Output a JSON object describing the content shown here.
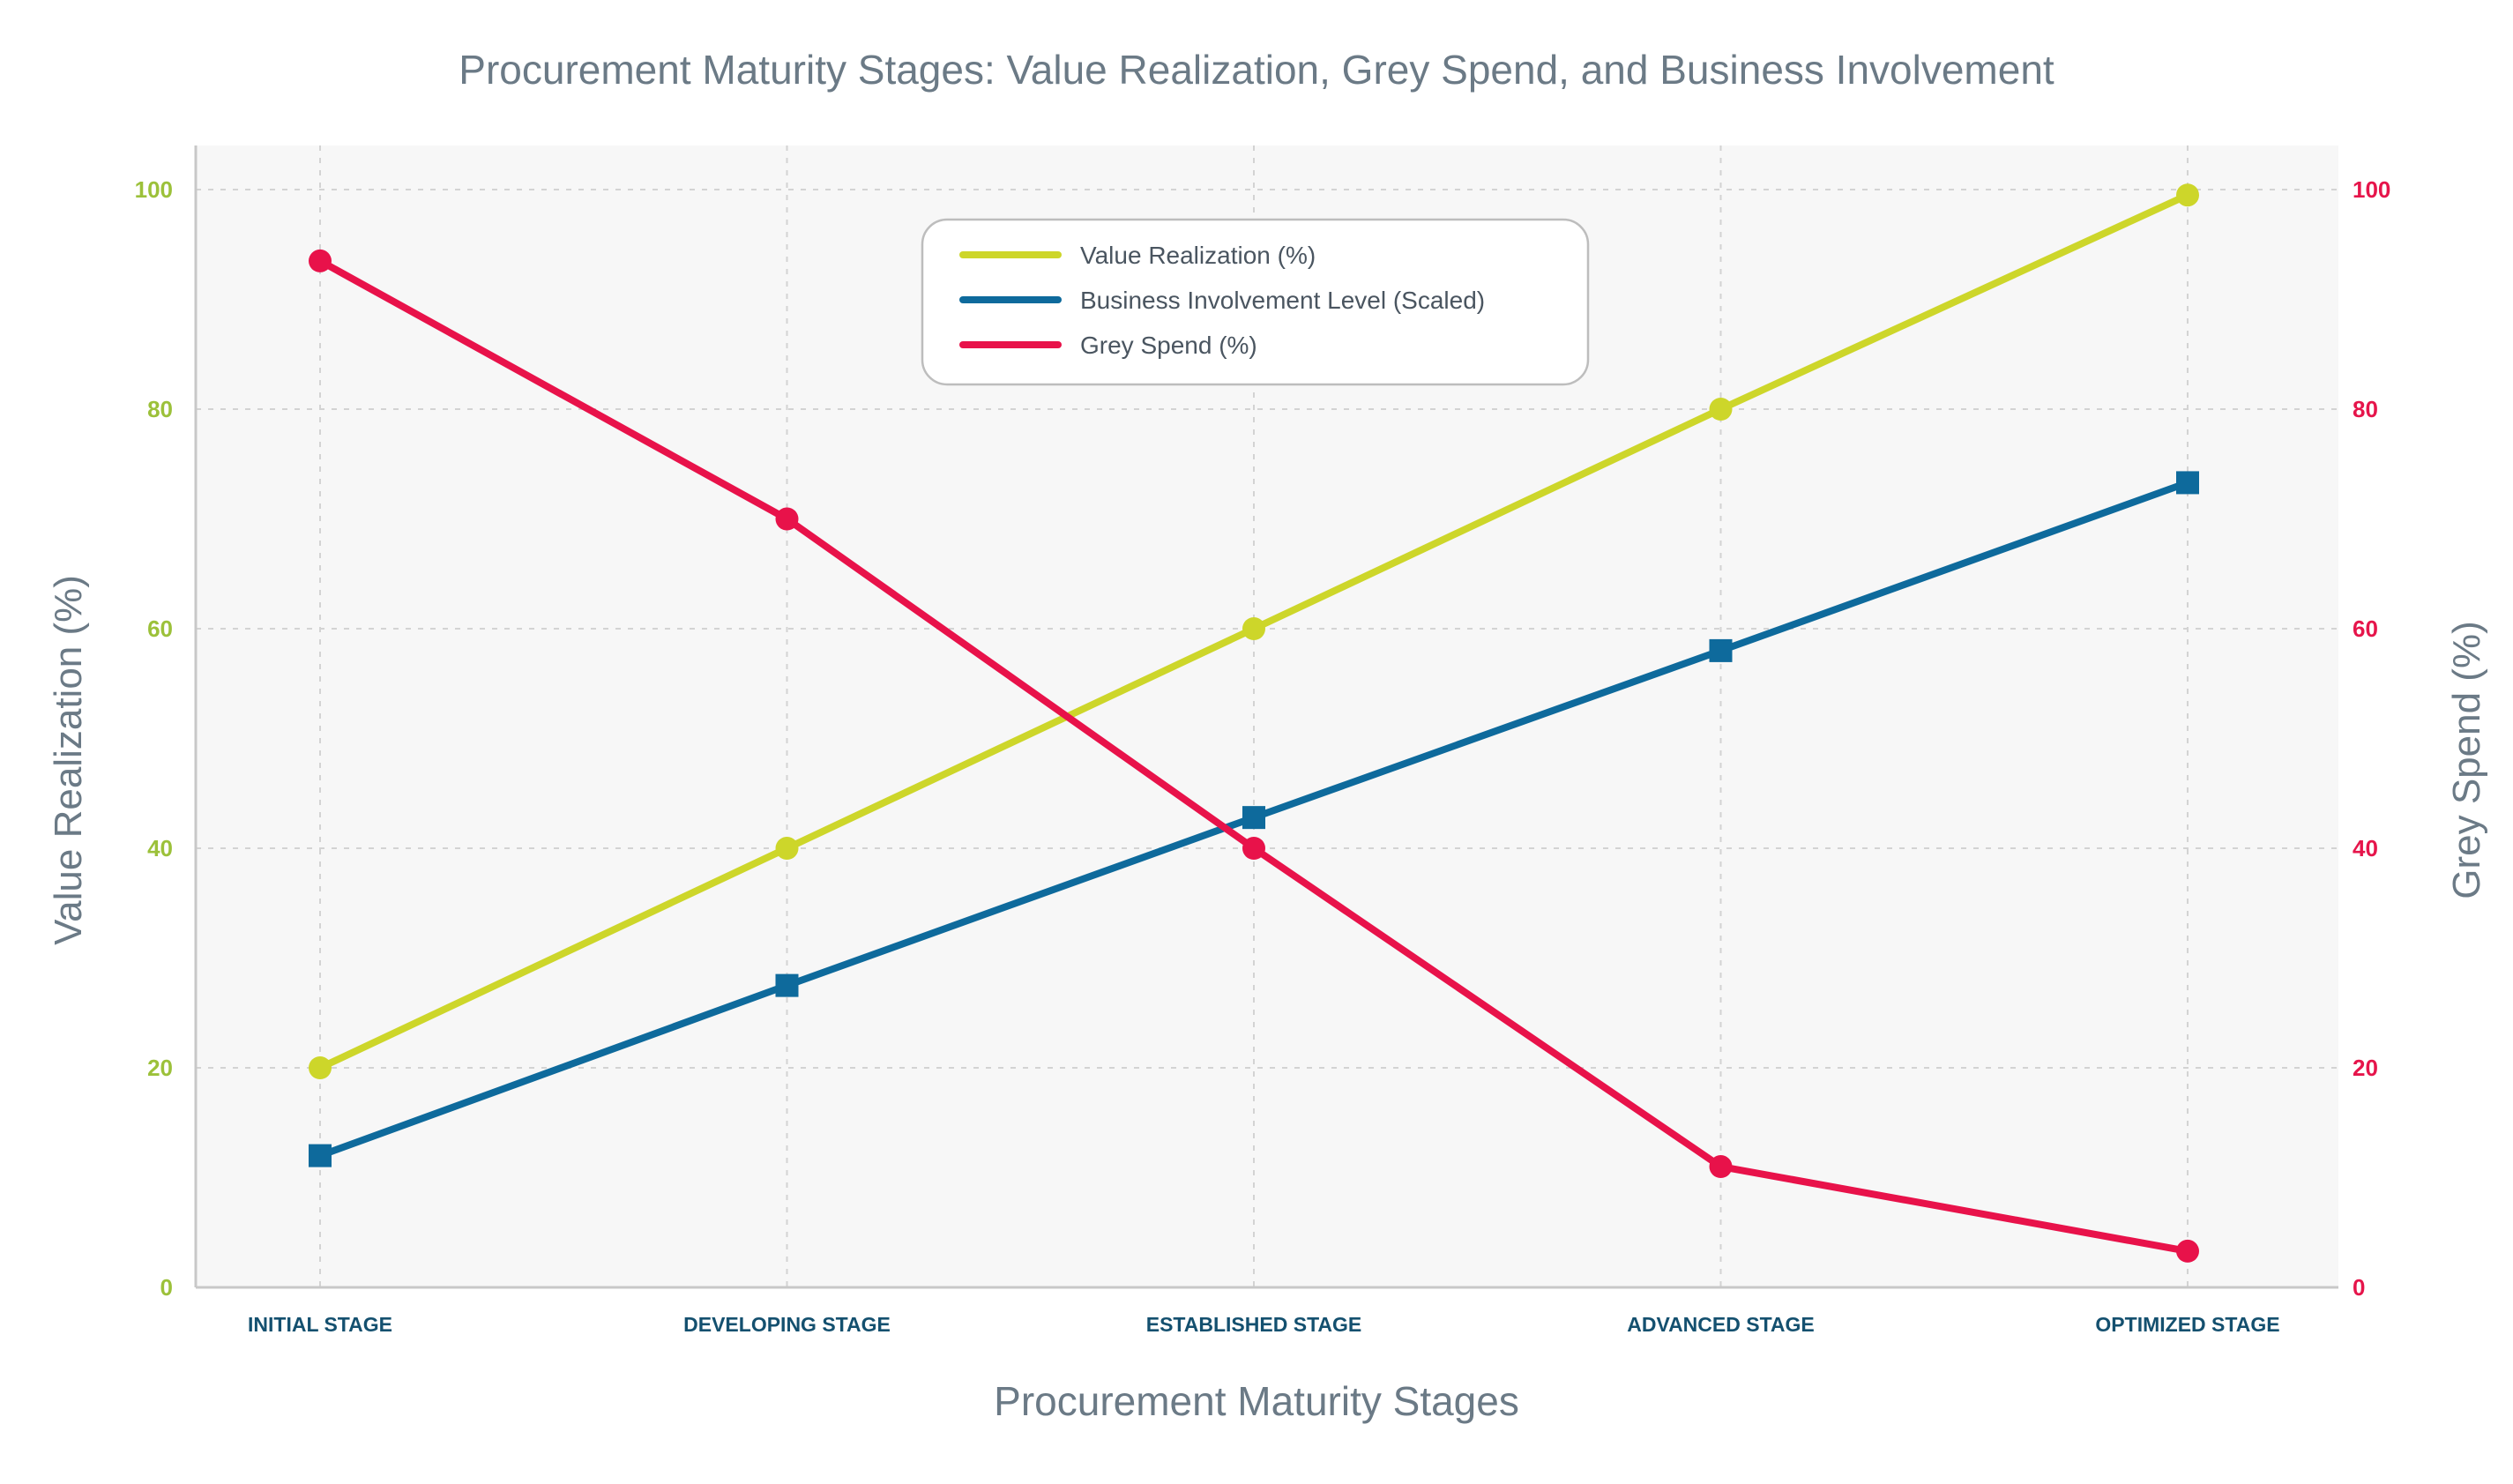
{
  "chart_data": {
    "type": "line",
    "title": "Procurement Maturity Stages: Value Realization, Grey Spend, and Business Involvement",
    "xlabel": "Procurement Maturity Stages",
    "ylabel_left": "Value Realization (%)",
    "ylabel_right": "Grey Spend (%)",
    "categories": [
      "INITIAL STAGE",
      "DEVELOPING STAGE",
      "ESTABLISHED STAGE",
      "ADVANCED STAGE",
      "OPTIMIZED STAGE"
    ],
    "ylim_left": [
      0,
      100
    ],
    "ylim_right": [
      0,
      100
    ],
    "yticks": [
      "0",
      "20",
      "40",
      "60",
      "80",
      "100"
    ],
    "grid": true,
    "legend_position": "top-center",
    "series": [
      {
        "name": "Value Realization (%)",
        "axis": "left",
        "marker": "circle",
        "color": "#cdd62a",
        "values": [
          20,
          40,
          60,
          80,
          99.5
        ]
      },
      {
        "name": "Business Involvement Level (Scaled)",
        "axis": "left",
        "marker": "square",
        "color": "#0e6a9c",
        "values": [
          12,
          27.5,
          42.8,
          58,
          73.3
        ]
      },
      {
        "name": "Grey Spend (%)",
        "axis": "right",
        "marker": "circle",
        "color": "#e8124a",
        "values": [
          93.5,
          70,
          40,
          11,
          3.3
        ]
      }
    ],
    "colors": {
      "left_axis": "#9cc13a",
      "right_axis": "#e6154b",
      "category_labels": "#14506f",
      "plot_background": "#f7f7f7"
    }
  }
}
